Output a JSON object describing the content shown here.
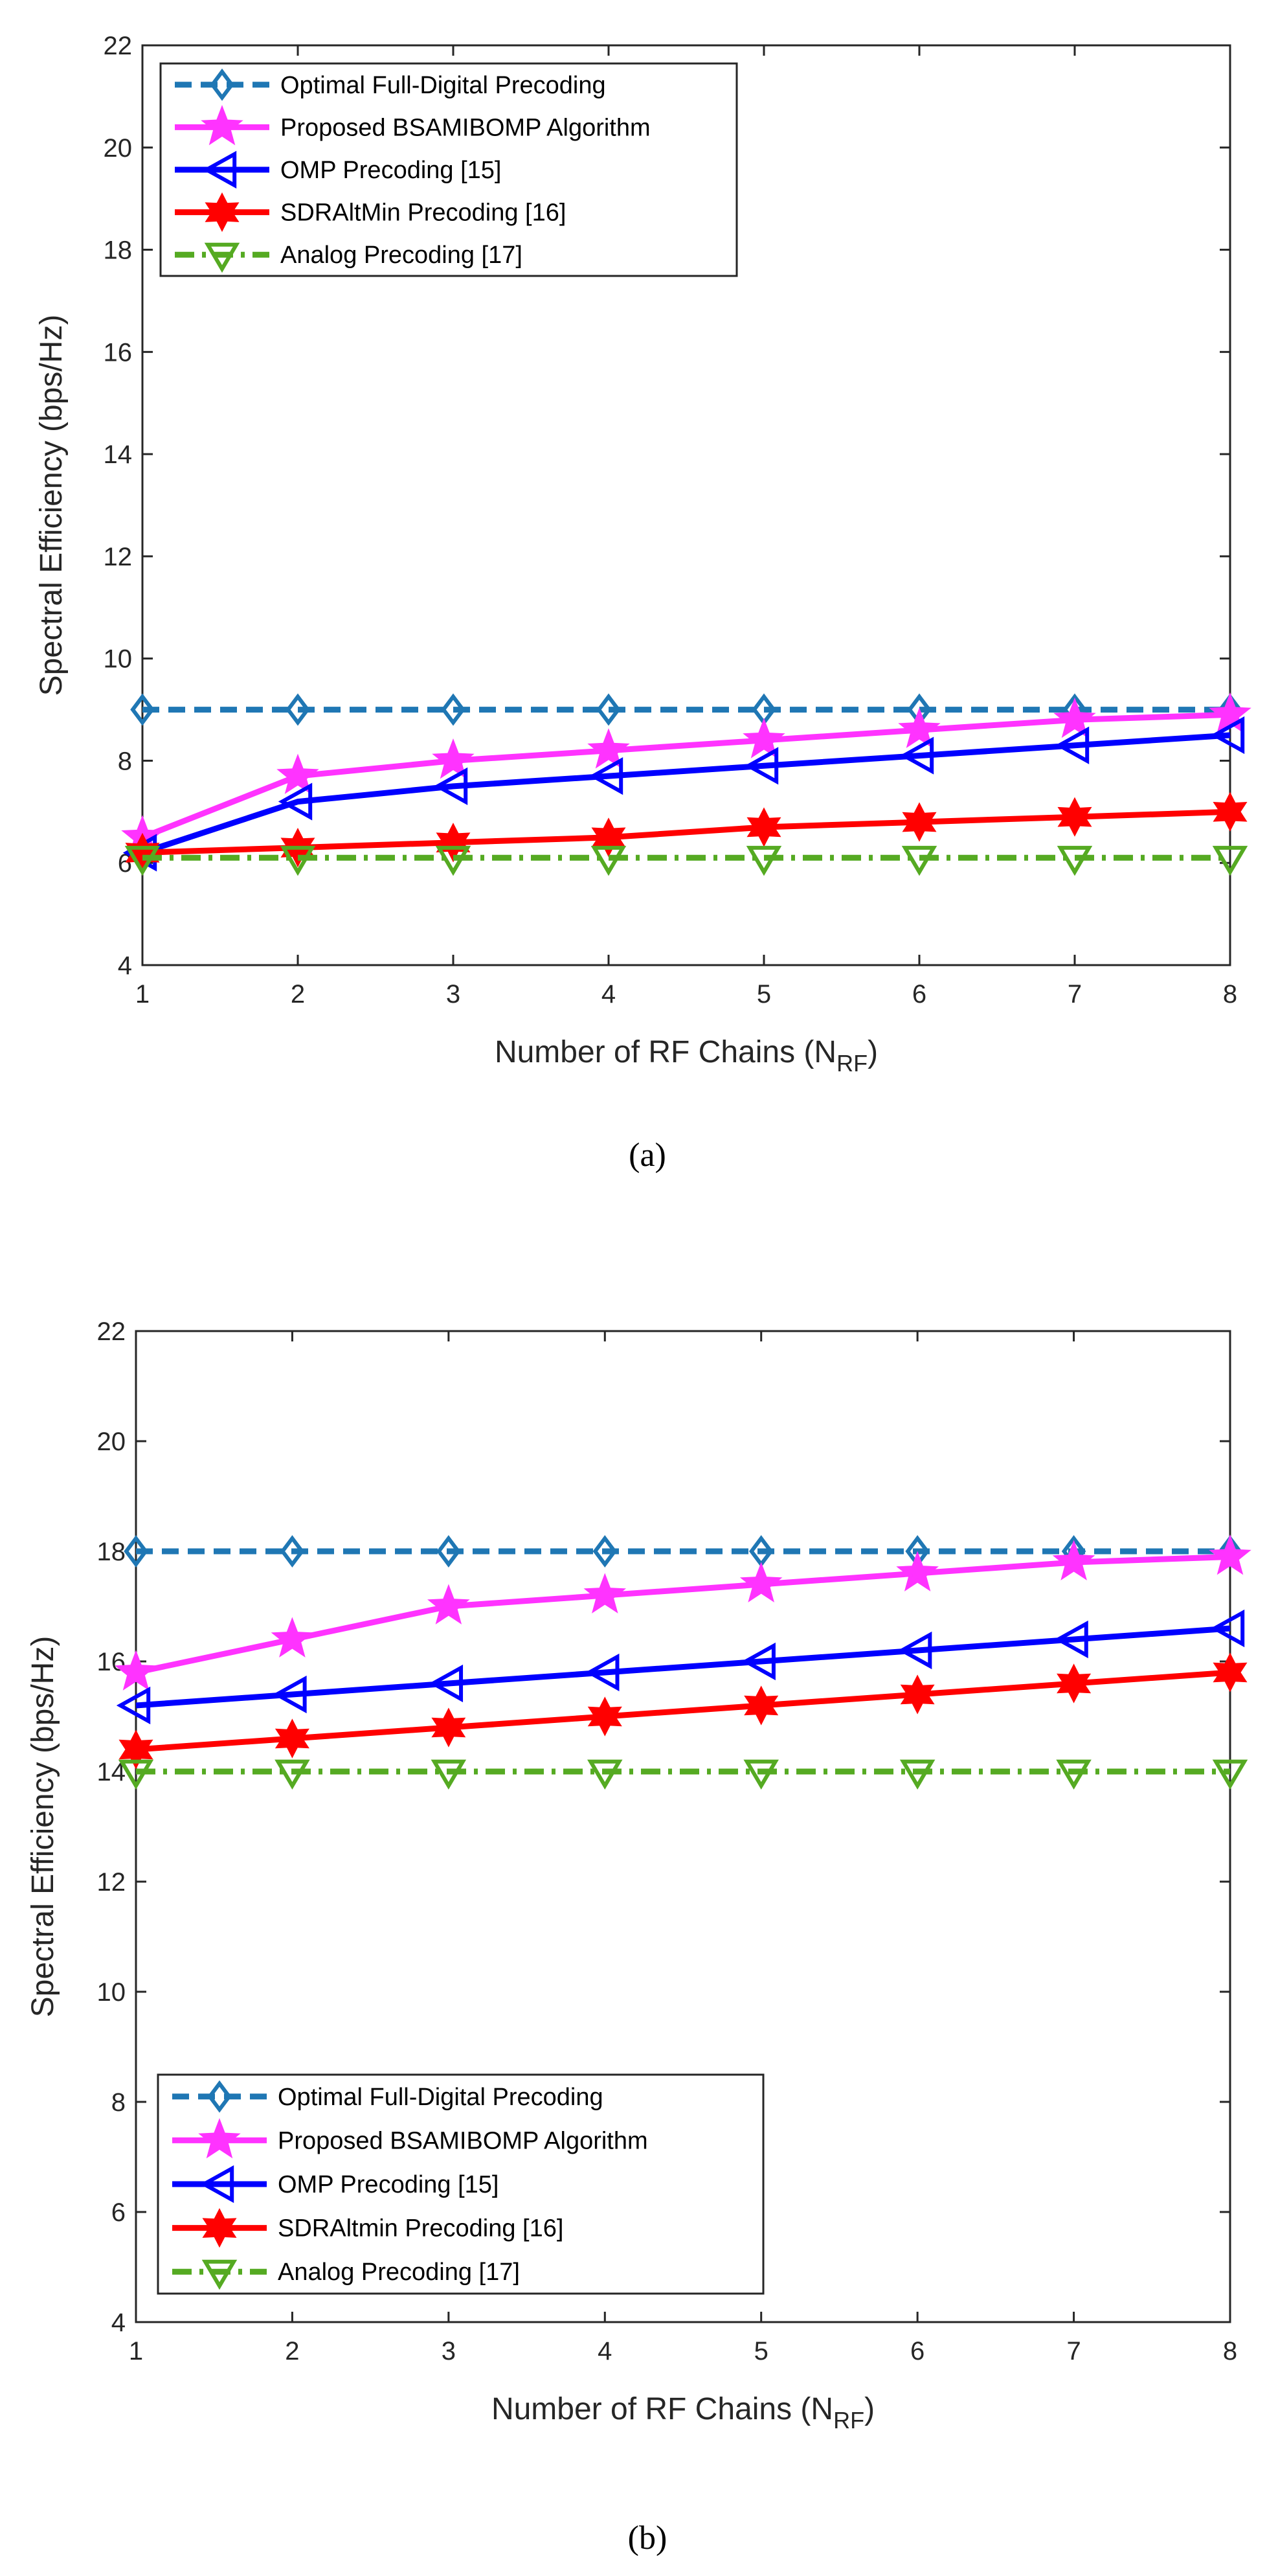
{
  "figure": {
    "captions": [
      "(a)",
      "(b)"
    ]
  },
  "series_style": [
    {
      "color": "#1f77b4",
      "dash": "dashed",
      "marker": "diamond"
    },
    {
      "color": "#ff33ff",
      "dash": "solid",
      "marker": "star"
    },
    {
      "color": "#0000ff",
      "dash": "solid",
      "marker": "triangle-left"
    },
    {
      "color": "#ff0000",
      "dash": "solid",
      "marker": "hexagram"
    },
    {
      "color": "#55aa22",
      "dash": "dashdot",
      "marker": "triangle-down"
    }
  ],
  "chart_data": [
    {
      "type": "line",
      "id": "a",
      "title": "",
      "xlabel": "Number of RF Chains (N",
      "xlabel_sub": "RF",
      "xlabel_close": ")",
      "ylabel": "Spectral Efficiency (bps/Hz)",
      "x": [
        1,
        2,
        3,
        4,
        5,
        6,
        7,
        8
      ],
      "xlim": [
        1,
        8
      ],
      "ylim": [
        4,
        22
      ],
      "xticks": [
        1,
        2,
        3,
        4,
        5,
        6,
        7,
        8
      ],
      "yticks": [
        4,
        6,
        8,
        10,
        12,
        14,
        16,
        18,
        20,
        22
      ],
      "legend_position": "top-left",
      "series": [
        {
          "name": "Optimal Full-Digital Precoding",
          "values": [
            9,
            9,
            9,
            9,
            9,
            9,
            9,
            9
          ]
        },
        {
          "name": "Proposed BSAMIBOMP Algorithm",
          "values": [
            6.5,
            7.7,
            8.0,
            8.2,
            8.4,
            8.6,
            8.8,
            8.9
          ]
        },
        {
          "name": "OMP Precoding [15]",
          "values": [
            6.2,
            7.2,
            7.5,
            7.7,
            7.9,
            8.1,
            8.3,
            8.5
          ]
        },
        {
          "name": "SDRAltMin Precoding [16]",
          "values": [
            6.2,
            6.3,
            6.4,
            6.5,
            6.7,
            6.8,
            6.9,
            7.0
          ]
        },
        {
          "name": "Analog Precoding [17]",
          "values": [
            6.1,
            6.1,
            6.1,
            6.1,
            6.1,
            6.1,
            6.1,
            6.1
          ]
        }
      ]
    },
    {
      "type": "line",
      "id": "b",
      "title": "",
      "xlabel": "Number of RF Chains (N",
      "xlabel_sub": "RF",
      "xlabel_close": ")",
      "ylabel": "Spectral Efficiency (bps/Hz)",
      "x": [
        1,
        2,
        3,
        4,
        5,
        6,
        7,
        8
      ],
      "xlim": [
        1,
        8
      ],
      "ylim": [
        4,
        22
      ],
      "xticks": [
        1,
        2,
        3,
        4,
        5,
        6,
        7,
        8
      ],
      "yticks": [
        4,
        6,
        8,
        10,
        12,
        14,
        16,
        18,
        20,
        22
      ],
      "legend_position": "bottom-left",
      "series": [
        {
          "name": "Optimal Full-Digital Precoding",
          "values": [
            18,
            18,
            18,
            18,
            18,
            18,
            18,
            18
          ]
        },
        {
          "name": "Proposed BSAMIBOMP Algorithm",
          "values": [
            15.8,
            16.4,
            17.0,
            17.2,
            17.4,
            17.6,
            17.8,
            17.9
          ]
        },
        {
          "name": "OMP Precoding [15]",
          "values": [
            15.2,
            15.4,
            15.6,
            15.8,
            16.0,
            16.2,
            16.4,
            16.6
          ]
        },
        {
          "name": "SDRAltmin Precoding [16]",
          "values": [
            14.4,
            14.6,
            14.8,
            15.0,
            15.2,
            15.4,
            15.6,
            15.8
          ]
        },
        {
          "name": "Analog Precoding [17]",
          "values": [
            14.0,
            14.0,
            14.0,
            14.0,
            14.0,
            14.0,
            14.0,
            14.0
          ]
        }
      ]
    }
  ]
}
